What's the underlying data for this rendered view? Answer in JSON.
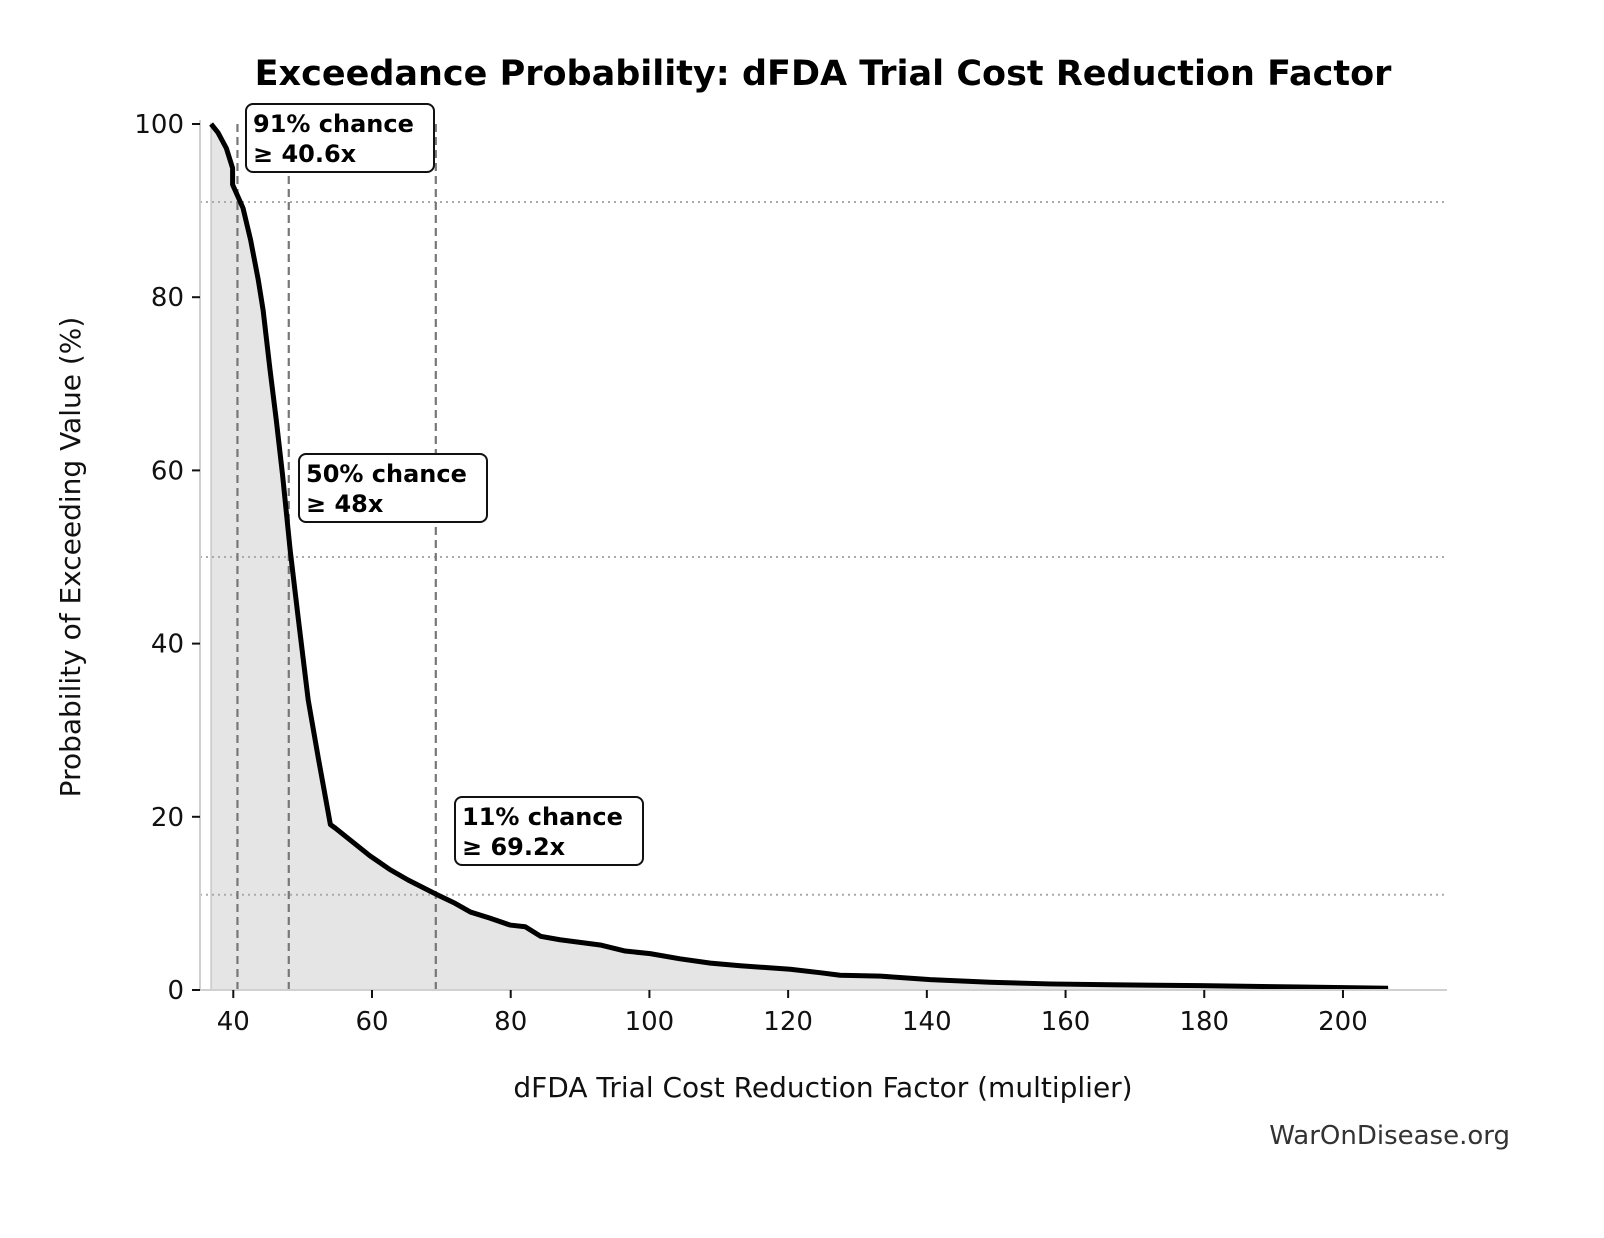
{
  "chart_data": {
    "type": "area",
    "title": "Exceedance Probability: dFDA Trial Cost Reduction Factor",
    "xlabel": "dFDA Trial Cost Reduction Factor (multiplier)",
    "ylabel": "Probability of Exceeding Value (%)",
    "xlim": [
      35.2,
      215
    ],
    "ylim": [
      0,
      100
    ],
    "xticks": [
      40,
      60,
      80,
      100,
      120,
      140,
      160,
      180,
      200
    ],
    "yticks": [
      0,
      20,
      40,
      60,
      80,
      100
    ],
    "grid": false,
    "colors": {
      "line": "#000000",
      "fill": "#e5e5e5",
      "reference": "#777777",
      "hline": "#aaaaaa"
    },
    "x": [
      36.8,
      37.8,
      39.0,
      39.9,
      39.9,
      41.4,
      42.5,
      43.6,
      44.3,
      45.3,
      46.2,
      47.1,
      48.2,
      49.4,
      50.8,
      52.3,
      54.0,
      54.7,
      57.2,
      59.7,
      62.6,
      65.2,
      69.4,
      72.0,
      74.2,
      77.0,
      79.9,
      82.1,
      84.3,
      87.1,
      90.0,
      92.9,
      96.5,
      100.1,
      104.4,
      108.8,
      113.1,
      120.3,
      124.6,
      127.5,
      133.3,
      140.5,
      149.1,
      157.8,
      166.4,
      179.4,
      193.8,
      206.5
    ],
    "y": [
      100,
      99,
      97.2,
      94.9,
      93,
      90.3,
      86.6,
      82,
      78.5,
      71.6,
      65.8,
      59.5,
      50.8,
      42.7,
      33.5,
      26.6,
      19.1,
      18.7,
      17.1,
      15.5,
      13.9,
      12.7,
      11.0,
      10.0,
      9.0,
      8.3,
      7.5,
      7.3,
      6.2,
      5.8,
      5.5,
      5.2,
      4.5,
      4.2,
      3.6,
      3.1,
      2.8,
      2.4,
      2.0,
      1.7,
      1.6,
      1.2,
      0.9,
      0.7,
      0.6,
      0.5,
      0.35,
      0.2
    ],
    "annotations": [
      {
        "prob": 91,
        "value": 40.6,
        "line1": "91% chance",
        "line2": "≥ 40.6x"
      },
      {
        "prob": 50,
        "value": 48,
        "line1": "50% chance",
        "line2": "≥ 48x"
      },
      {
        "prob": 11,
        "value": 69.2,
        "line1": "11% chance",
        "line2": "≥ 69.2x"
      }
    ]
  },
  "watermark": "WarOnDisease.org"
}
